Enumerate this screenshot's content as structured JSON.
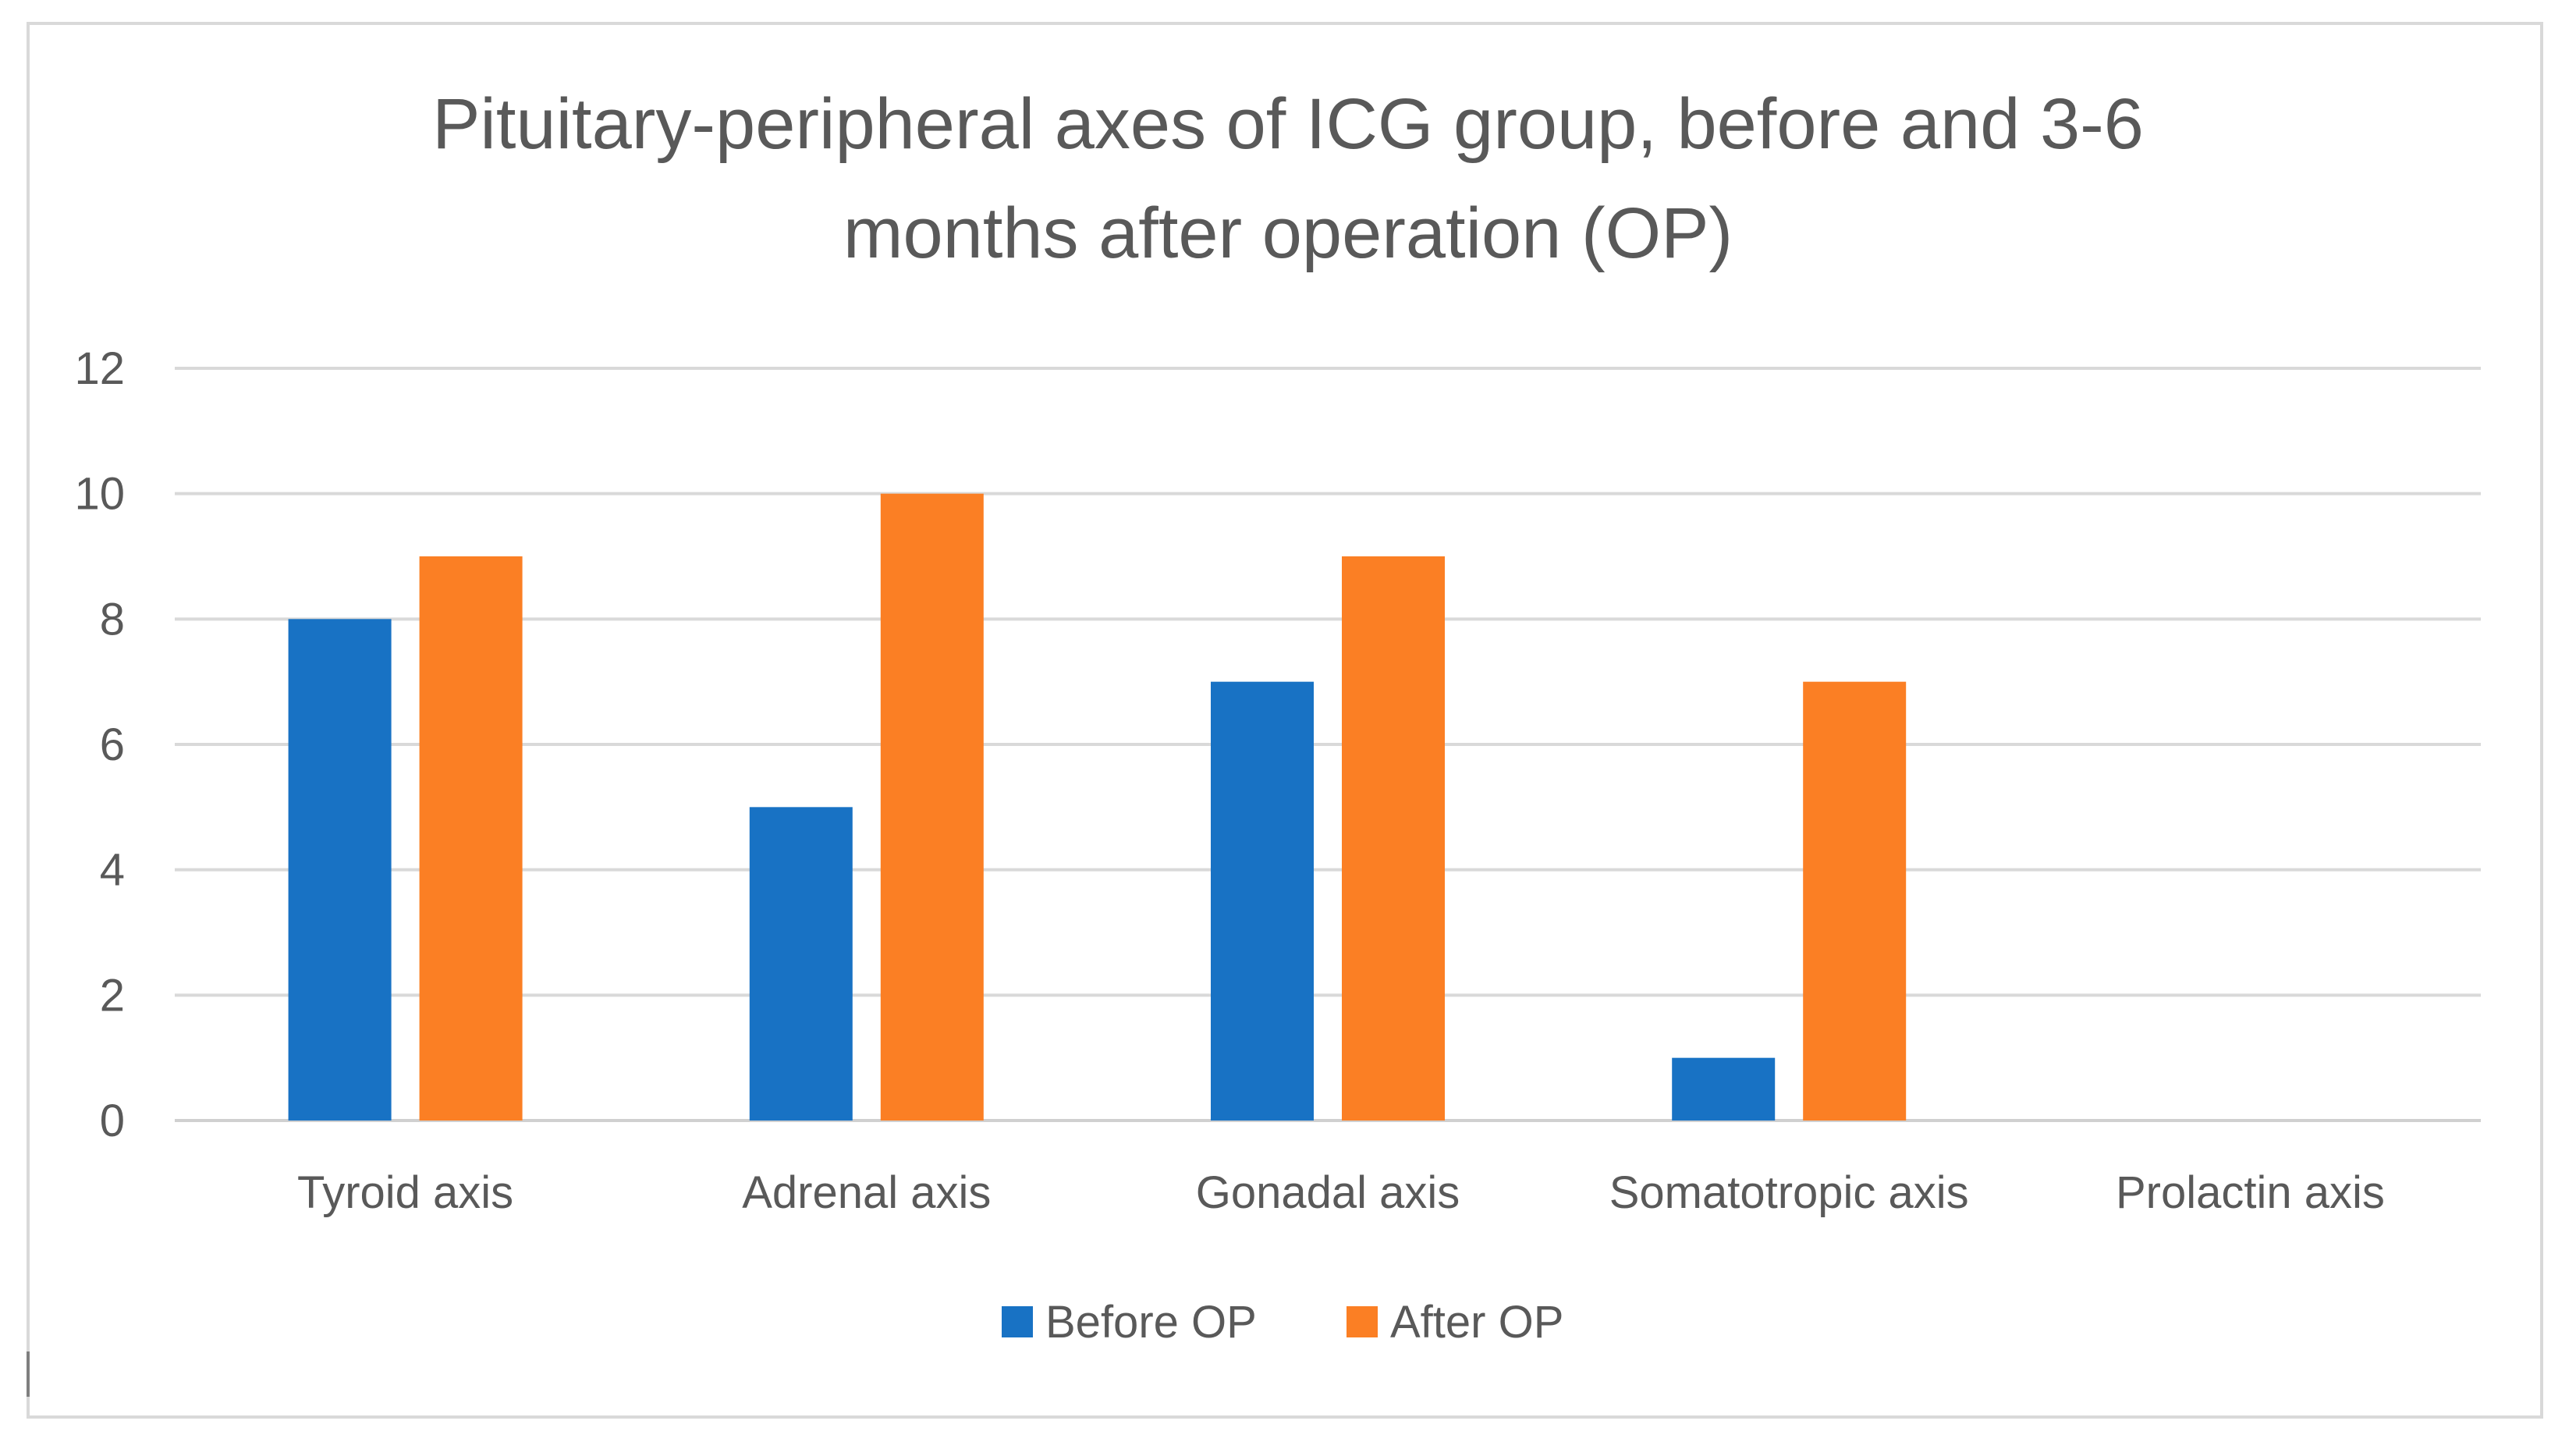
{
  "chart_data": {
    "type": "bar",
    "title": "Pituitary-peripheral axes of ICG group, before and 3-6 months after operation (OP)",
    "title_lines": [
      "Pituitary-peripheral axes of ICG group, before and 3-6",
      "months after operation (OP)"
    ],
    "xlabel": "",
    "ylabel": "",
    "ylim": [
      0,
      12
    ],
    "yticks": [
      0,
      2,
      4,
      6,
      8,
      10,
      12
    ],
    "grid": true,
    "legend_position": "bottom",
    "categories": [
      "Tyroid axis",
      "Adrenal axis",
      "Gonadal axis",
      "Somatotropic axis",
      "Prolactin axis"
    ],
    "series": [
      {
        "name": "Before OP",
        "color": "#1872c4",
        "values": [
          8,
          5,
          7,
          1,
          0
        ]
      },
      {
        "name": "After OP",
        "color": "#fb7f24",
        "values": [
          9,
          10,
          9,
          7,
          0
        ]
      }
    ]
  }
}
